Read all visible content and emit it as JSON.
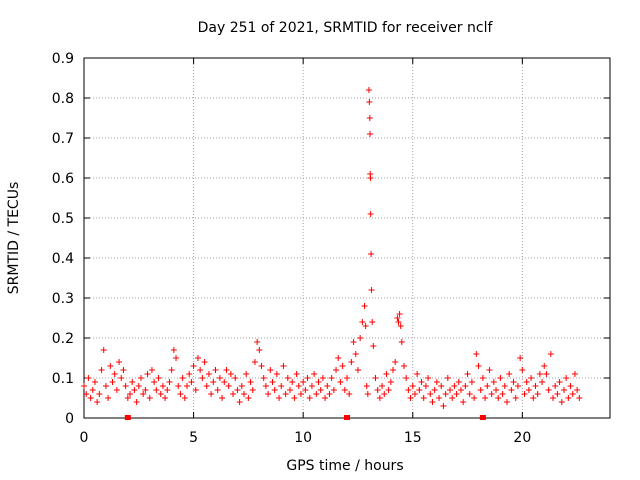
{
  "chart_data": {
    "type": "scatter",
    "title": "Day 251 of 2021, SRMTID for receiver nclf",
    "xlabel": "GPS time / hours",
    "ylabel": "SRMTID / TECUs",
    "xlim": [
      0,
      24
    ],
    "ylim": [
      0,
      0.9
    ],
    "x_ticks": [
      0,
      5,
      10,
      15,
      20
    ],
    "x_tick_labels": [
      "0",
      "5",
      "10",
      "15",
      "20"
    ],
    "y_ticks": [
      0,
      0.1,
      0.2,
      0.3,
      0.4,
      0.5,
      0.6,
      0.7,
      0.8,
      0.9
    ],
    "y_tick_labels": [
      "0",
      "0.1",
      "0.2",
      "0.3",
      "0.4",
      "0.5",
      "0.6",
      "0.7",
      "0.8",
      "0.9"
    ],
    "grid": true,
    "marker": "+",
    "color": "#ff0000",
    "series": [
      {
        "name": "nclf",
        "points": [
          [
            0.0,
            0.08
          ],
          [
            0.1,
            0.06
          ],
          [
            0.2,
            0.1
          ],
          [
            0.3,
            0.05
          ],
          [
            0.4,
            0.07
          ],
          [
            0.5,
            0.09
          ],
          [
            0.6,
            0.04
          ],
          [
            0.7,
            0.06
          ],
          [
            0.8,
            0.12
          ],
          [
            0.9,
            0.17
          ],
          [
            1.0,
            0.08
          ],
          [
            1.1,
            0.05
          ],
          [
            1.2,
            0.13
          ],
          [
            1.3,
            0.09
          ],
          [
            1.4,
            0.11
          ],
          [
            1.5,
            0.07
          ],
          [
            1.6,
            0.14
          ],
          [
            1.7,
            0.1
          ],
          [
            1.8,
            0.12
          ],
          [
            1.9,
            0.08
          ],
          [
            2.0,
            0.05
          ],
          [
            2.1,
            0.06
          ],
          [
            2.2,
            0.09
          ],
          [
            2.3,
            0.07
          ],
          [
            2.4,
            0.04
          ],
          [
            2.5,
            0.08
          ],
          [
            2.6,
            0.1
          ],
          [
            2.7,
            0.06
          ],
          [
            2.8,
            0.07
          ],
          [
            2.9,
            0.11
          ],
          [
            3.0,
            0.05
          ],
          [
            3.1,
            0.12
          ],
          [
            3.2,
            0.09
          ],
          [
            3.3,
            0.07
          ],
          [
            3.4,
            0.1
          ],
          [
            3.5,
            0.06
          ],
          [
            3.6,
            0.08
          ],
          [
            3.7,
            0.05
          ],
          [
            3.8,
            0.07
          ],
          [
            3.9,
            0.09
          ],
          [
            4.0,
            0.12
          ],
          [
            4.1,
            0.17
          ],
          [
            4.2,
            0.15
          ],
          [
            4.3,
            0.08
          ],
          [
            4.4,
            0.06
          ],
          [
            4.5,
            0.1
          ],
          [
            4.6,
            0.05
          ],
          [
            4.7,
            0.08
          ],
          [
            4.8,
            0.11
          ],
          [
            4.9,
            0.09
          ],
          [
            5.0,
            0.13
          ],
          [
            5.1,
            0.07
          ],
          [
            5.2,
            0.15
          ],
          [
            5.3,
            0.12
          ],
          [
            5.4,
            0.1
          ],
          [
            5.5,
            0.14
          ],
          [
            5.6,
            0.08
          ],
          [
            5.7,
            0.11
          ],
          [
            5.8,
            0.06
          ],
          [
            5.9,
            0.09
          ],
          [
            6.0,
            0.12
          ],
          [
            6.1,
            0.07
          ],
          [
            6.2,
            0.1
          ],
          [
            6.3,
            0.05
          ],
          [
            6.4,
            0.09
          ],
          [
            6.5,
            0.12
          ],
          [
            6.6,
            0.08
          ],
          [
            6.7,
            0.11
          ],
          [
            6.8,
            0.06
          ],
          [
            6.9,
            0.1
          ],
          [
            7.0,
            0.07
          ],
          [
            7.1,
            0.04
          ],
          [
            7.2,
            0.08
          ],
          [
            7.3,
            0.06
          ],
          [
            7.4,
            0.11
          ],
          [
            7.5,
            0.05
          ],
          [
            7.6,
            0.09
          ],
          [
            7.7,
            0.07
          ],
          [
            7.8,
            0.14
          ],
          [
            7.9,
            0.19
          ],
          [
            8.0,
            0.17
          ],
          [
            8.1,
            0.13
          ],
          [
            8.2,
            0.1
          ],
          [
            8.3,
            0.08
          ],
          [
            8.4,
            0.06
          ],
          [
            8.5,
            0.12
          ],
          [
            8.6,
            0.09
          ],
          [
            8.7,
            0.07
          ],
          [
            8.8,
            0.11
          ],
          [
            8.9,
            0.05
          ],
          [
            9.0,
            0.08
          ],
          [
            9.1,
            0.13
          ],
          [
            9.2,
            0.06
          ],
          [
            9.3,
            0.1
          ],
          [
            9.4,
            0.07
          ],
          [
            9.5,
            0.09
          ],
          [
            9.6,
            0.05
          ],
          [
            9.7,
            0.11
          ],
          [
            9.8,
            0.08
          ],
          [
            9.9,
            0.06
          ],
          [
            10.0,
            0.09
          ],
          [
            10.1,
            0.07
          ],
          [
            10.2,
            0.1
          ],
          [
            10.3,
            0.05
          ],
          [
            10.4,
            0.08
          ],
          [
            10.5,
            0.11
          ],
          [
            10.6,
            0.06
          ],
          [
            10.7,
            0.09
          ],
          [
            10.8,
            0.07
          ],
          [
            10.9,
            0.1
          ],
          [
            11.0,
            0.05
          ],
          [
            11.1,
            0.08
          ],
          [
            11.2,
            0.06
          ],
          [
            11.3,
            0.1
          ],
          [
            11.4,
            0.07
          ],
          [
            11.5,
            0.12
          ],
          [
            11.6,
            0.15
          ],
          [
            11.7,
            0.09
          ],
          [
            11.8,
            0.13
          ],
          [
            11.9,
            0.07
          ],
          [
            12.0,
            0.1
          ],
          [
            12.1,
            0.06
          ],
          [
            12.2,
            0.14
          ],
          [
            12.3,
            0.19
          ],
          [
            12.4,
            0.16
          ],
          [
            12.5,
            0.12
          ],
          [
            12.6,
            0.2
          ],
          [
            12.7,
            0.24
          ],
          [
            12.8,
            0.28
          ],
          [
            12.85,
            0.23
          ],
          [
            12.9,
            0.08
          ],
          [
            12.95,
            0.06
          ],
          [
            13.0,
            0.82
          ],
          [
            13.02,
            0.79
          ],
          [
            13.04,
            0.75
          ],
          [
            13.05,
            0.71
          ],
          [
            13.06,
            0.61
          ],
          [
            13.07,
            0.6
          ],
          [
            13.08,
            0.51
          ],
          [
            13.1,
            0.41
          ],
          [
            13.12,
            0.32
          ],
          [
            13.15,
            0.24
          ],
          [
            13.2,
            0.18
          ],
          [
            13.3,
            0.1
          ],
          [
            13.4,
            0.07
          ],
          [
            13.5,
            0.05
          ],
          [
            13.6,
            0.08
          ],
          [
            13.7,
            0.06
          ],
          [
            13.8,
            0.11
          ],
          [
            13.9,
            0.07
          ],
          [
            14.0,
            0.09
          ],
          [
            14.1,
            0.12
          ],
          [
            14.2,
            0.14
          ],
          [
            14.3,
            0.25
          ],
          [
            14.35,
            0.24
          ],
          [
            14.4,
            0.26
          ],
          [
            14.45,
            0.23
          ],
          [
            14.5,
            0.19
          ],
          [
            14.6,
            0.13
          ],
          [
            14.7,
            0.1
          ],
          [
            14.8,
            0.07
          ],
          [
            14.9,
            0.05
          ],
          [
            15.0,
            0.08
          ],
          [
            15.1,
            0.06
          ],
          [
            15.2,
            0.11
          ],
          [
            15.3,
            0.07
          ],
          [
            15.4,
            0.09
          ],
          [
            15.5,
            0.05
          ],
          [
            15.6,
            0.08
          ],
          [
            15.7,
            0.1
          ],
          [
            15.8,
            0.06
          ],
          [
            15.9,
            0.04
          ],
          [
            16.0,
            0.07
          ],
          [
            16.1,
            0.09
          ],
          [
            16.2,
            0.05
          ],
          [
            16.3,
            0.08
          ],
          [
            16.4,
            0.03
          ],
          [
            16.5,
            0.06
          ],
          [
            16.6,
            0.1
          ],
          [
            16.7,
            0.07
          ],
          [
            16.8,
            0.05
          ],
          [
            16.9,
            0.08
          ],
          [
            17.0,
            0.06
          ],
          [
            17.1,
            0.09
          ],
          [
            17.2,
            0.07
          ],
          [
            17.3,
            0.04
          ],
          [
            17.4,
            0.08
          ],
          [
            17.5,
            0.11
          ],
          [
            17.6,
            0.06
          ],
          [
            17.7,
            0.09
          ],
          [
            17.8,
            0.05
          ],
          [
            17.9,
            0.16
          ],
          [
            18.0,
            0.13
          ],
          [
            18.1,
            0.07
          ],
          [
            18.2,
            0.1
          ],
          [
            18.3,
            0.05
          ],
          [
            18.4,
            0.08
          ],
          [
            18.5,
            0.12
          ],
          [
            18.6,
            0.06
          ],
          [
            18.7,
            0.09
          ],
          [
            18.8,
            0.07
          ],
          [
            18.9,
            0.05
          ],
          [
            19.0,
            0.1
          ],
          [
            19.1,
            0.06
          ],
          [
            19.2,
            0.08
          ],
          [
            19.3,
            0.04
          ],
          [
            19.4,
            0.11
          ],
          [
            19.5,
            0.07
          ],
          [
            19.6,
            0.09
          ],
          [
            19.7,
            0.05
          ],
          [
            19.8,
            0.08
          ],
          [
            19.9,
            0.15
          ],
          [
            20.0,
            0.12
          ],
          [
            20.1,
            0.06
          ],
          [
            20.2,
            0.09
          ],
          [
            20.3,
            0.07
          ],
          [
            20.4,
            0.1
          ],
          [
            20.5,
            0.05
          ],
          [
            20.6,
            0.08
          ],
          [
            20.7,
            0.06
          ],
          [
            20.8,
            0.11
          ],
          [
            20.9,
            0.09
          ],
          [
            21.0,
            0.13
          ],
          [
            21.1,
            0.11
          ],
          [
            21.2,
            0.07
          ],
          [
            21.3,
            0.16
          ],
          [
            21.4,
            0.05
          ],
          [
            21.5,
            0.08
          ],
          [
            21.6,
            0.06
          ],
          [
            21.7,
            0.09
          ],
          [
            21.8,
            0.04
          ],
          [
            21.9,
            0.07
          ],
          [
            22.0,
            0.1
          ],
          [
            22.1,
            0.05
          ],
          [
            22.2,
            0.08
          ],
          [
            22.3,
            0.06
          ],
          [
            22.4,
            0.11
          ],
          [
            22.5,
            0.07
          ],
          [
            22.6,
            0.05
          ]
        ]
      }
    ],
    "gap_markers_x": [
      2.0,
      12.0,
      18.2
    ]
  }
}
